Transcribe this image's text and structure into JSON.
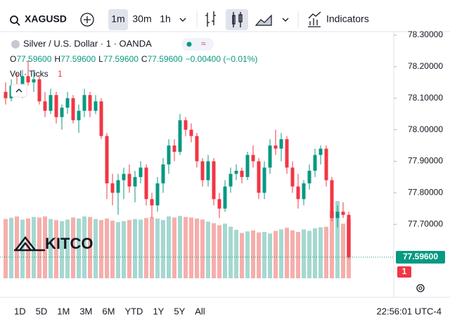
{
  "toolbar": {
    "symbol": "XAGUSD",
    "intervals": [
      "1m",
      "30m",
      "1h"
    ],
    "indicators": "Indicators"
  },
  "legend": {
    "title": "Silver / U.S. Dollar · 1 · OANDA",
    "ohlc": [
      {
        "key": "O",
        "value": "77.59600"
      },
      {
        "key": "H",
        "value": "77.59600"
      },
      {
        "key": "L",
        "value": "77.59600"
      },
      {
        "key": "C",
        "value": "77.59600"
      }
    ],
    "change": "−0.00400 (−0.01%)",
    "volume_label": "Vol · Ticks",
    "volume_value": "1"
  },
  "watermark": "KITCO",
  "price_label": "77.59600",
  "volume_label": "1",
  "ranges": [
    "1D",
    "5D",
    "1M",
    "3M",
    "6M",
    "YTD",
    "1Y",
    "5Y",
    "All"
  ],
  "clock": "22:56:01 UTC-4",
  "chart_data": {
    "type": "candlestick",
    "up_color": "#089981",
    "down_color": "#f23645",
    "up_volume_color": "#a5d8d0",
    "down_volume_color": "#f7aeab",
    "ylim": [
      77.52,
      78.32
    ],
    "yticks": [
      {
        "value": 78.3,
        "label": "78.30000"
      },
      {
        "value": 78.2,
        "label": "78.20000"
      },
      {
        "value": 78.1,
        "label": "78.10000"
      },
      {
        "value": 78.0,
        "label": "78.00000"
      },
      {
        "value": 77.9,
        "label": "77.90000"
      },
      {
        "value": 77.8,
        "label": "77.80000"
      },
      {
        "value": 77.7,
        "label": "77.70000"
      }
    ],
    "last": 77.596,
    "open": [
      78.12,
      78.1,
      78.14,
      78.12,
      78.17,
      78.15,
      78.16,
      78.09,
      78.06,
      78.11,
      78.04,
      78.07,
      78.1,
      78.03,
      78.06,
      78.11,
      78.06,
      78.09,
      77.98,
      77.83,
      77.8,
      77.84,
      77.86,
      77.82,
      77.85,
      77.88,
      77.78,
      77.76,
      77.83,
      77.89,
      77.95,
      77.93,
      78.03,
      78.0,
      77.98,
      77.9,
      77.84,
      77.9,
      77.78,
      77.75,
      77.82,
      77.86,
      77.87,
      77.85,
      77.92,
      77.9,
      77.8,
      77.88,
      77.95,
      77.94,
      77.97,
      77.88,
      77.82,
      77.78,
      77.83,
      77.87,
      77.92,
      77.94,
      77.84,
      77.72,
      77.74,
      77.73
    ],
    "high": [
      78.15,
      78.16,
      78.18,
      78.19,
      78.22,
      78.19,
      78.17,
      78.12,
      78.13,
      78.12,
      78.08,
      78.12,
      78.11,
      78.08,
      78.13,
      78.12,
      78.11,
      78.1,
      77.99,
      77.86,
      77.86,
      77.88,
      77.89,
      77.87,
      77.9,
      77.89,
      77.8,
      77.85,
      77.91,
      77.97,
      77.97,
      78.05,
      78.04,
      78.02,
      77.99,
      77.91,
      77.92,
      77.91,
      77.8,
      77.84,
      77.88,
      77.89,
      77.88,
      77.93,
      77.95,
      77.91,
      77.9,
      77.97,
      78.0,
      77.99,
      77.98,
      77.9,
      77.86,
      77.84,
      77.89,
      77.94,
      77.95,
      77.95,
      77.85,
      77.76,
      77.77,
      77.74
    ],
    "low": [
      78.08,
      78.09,
      78.11,
      78.1,
      78.14,
      78.12,
      78.08,
      78.04,
      78.05,
      78.02,
      78.0,
      78.05,
      78.02,
      77.99,
      78.04,
      78.04,
      78.05,
      77.97,
      77.78,
      77.76,
      77.73,
      77.78,
      77.8,
      77.77,
      77.83,
      77.76,
      77.72,
      77.74,
      77.8,
      77.86,
      77.9,
      77.92,
      77.98,
      77.96,
      77.88,
      77.82,
      77.82,
      77.76,
      77.72,
      77.74,
      77.8,
      77.84,
      77.83,
      77.84,
      77.88,
      77.78,
      77.78,
      77.86,
      77.92,
      77.9,
      77.86,
      77.8,
      77.75,
      77.76,
      77.81,
      77.85,
      77.89,
      77.82,
      77.71,
      77.69,
      77.72,
      77.59
    ],
    "close": [
      78.1,
      78.14,
      78.12,
      78.17,
      78.15,
      78.16,
      78.09,
      78.06,
      78.11,
      78.04,
      78.07,
      78.1,
      78.03,
      78.06,
      78.11,
      78.06,
      78.09,
      77.98,
      77.83,
      77.8,
      77.84,
      77.86,
      77.82,
      77.85,
      77.88,
      77.78,
      77.76,
      77.83,
      77.89,
      77.95,
      77.93,
      78.03,
      78.0,
      77.98,
      77.9,
      77.84,
      77.9,
      77.78,
      77.75,
      77.82,
      77.86,
      77.87,
      77.85,
      77.92,
      77.9,
      77.8,
      77.88,
      77.95,
      77.94,
      77.97,
      77.88,
      77.82,
      77.78,
      77.83,
      77.87,
      77.92,
      77.94,
      77.84,
      77.72,
      77.74,
      77.73,
      77.596
    ],
    "volume": [
      230,
      235,
      240,
      228,
      232,
      238,
      236,
      240,
      230,
      226,
      222,
      228,
      236,
      232,
      240,
      238,
      230,
      226,
      232,
      224,
      218,
      222,
      226,
      230,
      228,
      234,
      238,
      232,
      226,
      240,
      236,
      242,
      238,
      236,
      232,
      228,
      220,
      214,
      206,
      212,
      200,
      188,
      176,
      182,
      186,
      178,
      180,
      174,
      184,
      190,
      196,
      186,
      180,
      190,
      184,
      194,
      198,
      200,
      260,
      300,
      212,
      230
    ]
  }
}
